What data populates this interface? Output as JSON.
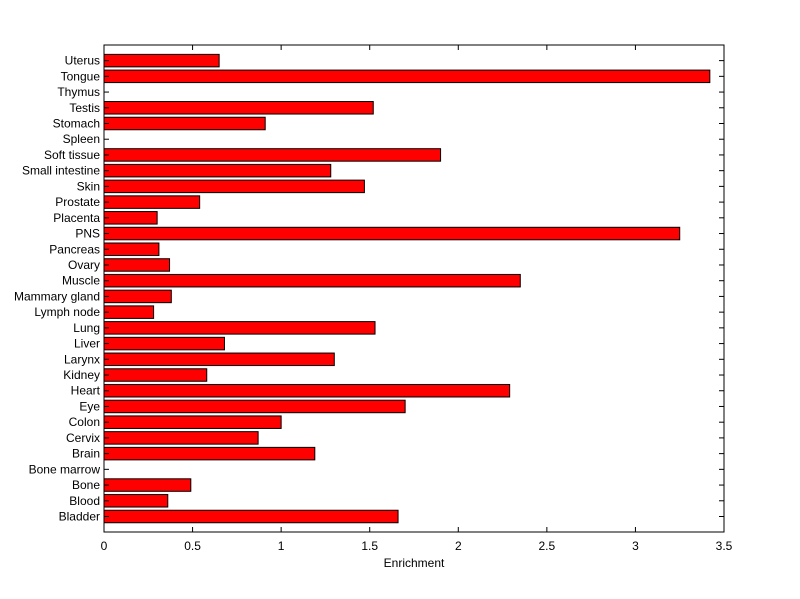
{
  "chart_data": {
    "type": "bar",
    "orientation": "horizontal",
    "categories": [
      "Bladder",
      "Blood",
      "Bone",
      "Bone marrow",
      "Brain",
      "Cervix",
      "Colon",
      "Eye",
      "Heart",
      "Kidney",
      "Larynx",
      "Liver",
      "Lung",
      "Lymph node",
      "Mammary gland",
      "Muscle",
      "Ovary",
      "Pancreas",
      "PNS",
      "Placenta",
      "Prostate",
      "Skin",
      "Small intestine",
      "Soft tissue",
      "Spleen",
      "Stomach",
      "Testis",
      "Thymus",
      "Tongue",
      "Uterus"
    ],
    "values": [
      1.66,
      0.36,
      0.49,
      0,
      1.19,
      0.87,
      1.0,
      1.7,
      2.29,
      0.58,
      1.3,
      0.68,
      1.53,
      0.28,
      0.38,
      2.35,
      0.37,
      0.31,
      3.25,
      0.3,
      0.54,
      1.47,
      1.28,
      1.9,
      0,
      0.91,
      1.52,
      0,
      3.42,
      0.65
    ],
    "xlabel": "Enrichment",
    "ylabel": "",
    "title": "",
    "xlim": [
      0,
      3.5
    ],
    "xticks": [
      0,
      0.5,
      1,
      1.5,
      2,
      2.5,
      3,
      3.5
    ],
    "xtick_labels": [
      "0",
      "0.5",
      "1",
      "1.5",
      "2",
      "2.5",
      "3",
      "3.5"
    ],
    "grid": false,
    "bar_color": "#ff0000",
    "edge_color": "#000000"
  }
}
